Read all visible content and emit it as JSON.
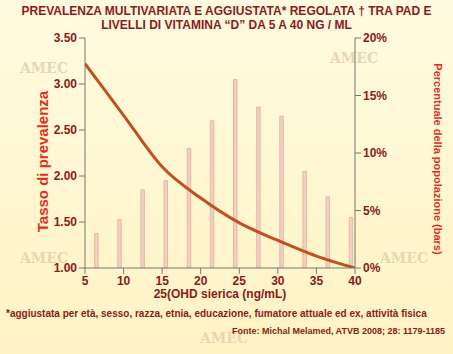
{
  "chart_data": {
    "type": "combo",
    "title": "PREVALENZA MULTIVARIATA E AGGIUSTATA* REGOLATA † TRA PAD E LIVELLI DI VITAMINA “D” DA 5 A 40 NG / ML",
    "x_label": "25(OHD sierica (ng/mL)",
    "y_label": "Tasso di prevalenza",
    "y2_label": "Percentuale della popolazione (bars)",
    "footnote": "*aggiustata per età, sesso, razza, etnia, educazione, fumatore attuale ed ex, attività fisica",
    "source": "Fonte: Michal Melamed, ATVB 2008; 28: 1179-1185",
    "watermark": "AMEC",
    "xlim": [
      5,
      40
    ],
    "xticks": [
      5,
      10,
      15,
      20,
      25,
      30,
      35,
      40
    ],
    "ylim": [
      1,
      3.5
    ],
    "yticks": [
      {
        "value": 1,
        "label": "1.00"
      },
      {
        "value": 1.5,
        "label": "1.50"
      },
      {
        "value": 2,
        "label": "2.00"
      },
      {
        "value": 2.5,
        "label": "2.50"
      },
      {
        "value": 3,
        "label": "3.00"
      },
      {
        "value": 3.5,
        "label": "3.50"
      }
    ],
    "y2lim": [
      0,
      20
    ],
    "y2ticks": [
      {
        "value": 0,
        "label": "0%"
      },
      {
        "value": 5,
        "label": "5%"
      },
      {
        "value": 10,
        "label": "10%"
      },
      {
        "value": 15,
        "label": "15%"
      },
      {
        "value": 20,
        "label": "20%"
      }
    ],
    "grid": false,
    "series": [
      {
        "type": "bar",
        "axis": "y2",
        "color": "#f2d0c2",
        "x": [
          6.5,
          9.5,
          12.5,
          15.5,
          18.5,
          21.5,
          24.5,
          27.5,
          30.5,
          33.5,
          36.5,
          39.5
        ],
        "values": [
          3.0,
          4.2,
          6.8,
          7.6,
          10.4,
          12.8,
          16.4,
          14.0,
          13.2,
          8.4,
          6.2,
          4.4
        ]
      },
      {
        "type": "line",
        "color": "#c0501f",
        "x": [
          5,
          10,
          15,
          20,
          25,
          30,
          35,
          40
        ],
        "values": [
          3.22,
          2.66,
          2.1,
          1.76,
          1.49,
          1.3,
          1.13,
          1.0
        ]
      }
    ]
  }
}
